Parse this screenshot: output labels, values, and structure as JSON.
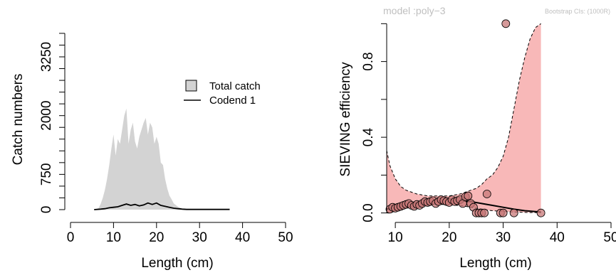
{
  "chart_data": [
    {
      "type": "area",
      "xlabel": "Length (cm)",
      "ylabel": "Catch numbers",
      "xlim": [
        0,
        50
      ],
      "ylim": [
        0,
        3900
      ],
      "xticks": [
        0,
        10,
        20,
        30,
        40,
        50
      ],
      "yticks_labeled": [
        0,
        750,
        2000,
        3250
      ],
      "yticks_minor": [
        250,
        500,
        1000,
        1250,
        1500,
        1750,
        2250,
        2500,
        2750,
        3000,
        3500,
        3750
      ],
      "legend_position": "top-right",
      "colors": {
        "total": "#d3d3d3",
        "codend": "#000000"
      },
      "series": [
        {
          "name": "Total catch",
          "style": "filled-area",
          "x": [
            5.5,
            6.5,
            7,
            7.5,
            8,
            8.5,
            9,
            9.5,
            10,
            10.5,
            11,
            11.5,
            12,
            12.5,
            13,
            13.5,
            14,
            14.5,
            15,
            15.5,
            16,
            16.5,
            17,
            17.5,
            18,
            18.5,
            19,
            19.5,
            20,
            20.5,
            21,
            21.5,
            22,
            22.5,
            23,
            23.5,
            24,
            25,
            26,
            37
          ],
          "y": [
            0,
            30,
            120,
            250,
            420,
            650,
            950,
            1300,
            1600,
            1150,
            1500,
            1400,
            1700,
            2000,
            2150,
            1400,
            1700,
            1850,
            1450,
            1300,
            1550,
            1700,
            1850,
            1950,
            1600,
            1850,
            1750,
            1400,
            1550,
            1400,
            1000,
            950,
            650,
            450,
            300,
            220,
            130,
            60,
            20,
            0
          ]
        },
        {
          "name": "Codend 1",
          "style": "line",
          "x": [
            5.5,
            7,
            8,
            9,
            10,
            11,
            12,
            13,
            14,
            15,
            16,
            17,
            18,
            19,
            20,
            21,
            22,
            23,
            24,
            25,
            26,
            27,
            30,
            34,
            37
          ],
          "y": [
            0,
            10,
            20,
            40,
            50,
            60,
            90,
            120,
            90,
            110,
            80,
            100,
            140,
            110,
            140,
            90,
            70,
            50,
            30,
            20,
            10,
            5,
            5,
            5,
            5
          ]
        }
      ]
    },
    {
      "type": "scatter",
      "title": "model :poly−3",
      "annotation": "Bootstrap CIs: (1000R)",
      "xlabel": "Length (cm)",
      "ylabel": "SIEVING efficiency",
      "xlim": [
        8.4,
        50
      ],
      "ylim": [
        -0.05,
        1.02
      ],
      "xticks": [
        10,
        20,
        30,
        40,
        50
      ],
      "yticks_labeled": [
        0.0,
        0.4,
        0.8
      ],
      "yticks_minor": [
        0.2,
        0.6,
        1.0
      ],
      "colors": {
        "band": "#f8b8b8",
        "points": "#c87878",
        "fit": "#000000"
      },
      "ci_band": {
        "x": [
          8.4,
          9,
          10,
          11,
          12,
          13,
          14,
          15,
          16,
          17,
          18,
          19,
          20,
          21,
          22,
          23,
          24,
          25,
          26,
          27,
          28,
          29,
          30,
          31,
          32,
          33,
          34,
          35,
          36,
          37
        ],
        "upper": [
          0.33,
          0.25,
          0.18,
          0.14,
          0.12,
          0.11,
          0.1,
          0.095,
          0.09,
          0.09,
          0.09,
          0.09,
          0.09,
          0.095,
          0.1,
          0.11,
          0.12,
          0.13,
          0.15,
          0.18,
          0.2,
          0.24,
          0.3,
          0.4,
          0.55,
          0.7,
          0.82,
          0.92,
          0.98,
          1.0
        ],
        "lower": [
          0.0,
          0.0,
          0.01,
          0.02,
          0.025,
          0.03,
          0.035,
          0.04,
          0.04,
          0.045,
          0.045,
          0.045,
          0.045,
          0.04,
          0.04,
          0.035,
          0.03,
          0.025,
          0.02,
          0.015,
          0.012,
          0.01,
          0.008,
          0.006,
          0.005,
          0.004,
          0.003,
          0.002,
          0.002,
          0.001
        ]
      },
      "fit": {
        "x": [
          8.4,
          10,
          12,
          14,
          16,
          18,
          20,
          22,
          24,
          26,
          28,
          30,
          32,
          34,
          37
        ],
        "y": [
          0.02,
          0.03,
          0.04,
          0.05,
          0.055,
          0.06,
          0.065,
          0.065,
          0.06,
          0.05,
          0.04,
          0.03,
          0.02,
          0.012,
          0.005
        ]
      },
      "points": {
        "x": [
          9,
          9.5,
          10,
          10.5,
          11,
          11.5,
          12,
          12.5,
          13,
          13.5,
          14,
          14.5,
          15,
          15.5,
          16,
          16.5,
          17,
          17.5,
          18,
          18.5,
          19,
          19.5,
          20,
          20.5,
          21,
          21.5,
          22,
          22.5,
          23,
          23.5,
          24,
          24.5,
          25,
          25.5,
          26,
          26.5,
          27,
          29.5,
          30,
          30.5,
          32,
          37
        ],
        "y": [
          0.02,
          0.03,
          0.025,
          0.03,
          0.035,
          0.04,
          0.045,
          0.05,
          0.04,
          0.035,
          0.045,
          0.04,
          0.05,
          0.06,
          0.055,
          0.06,
          0.065,
          0.05,
          0.06,
          0.07,
          0.065,
          0.06,
          0.055,
          0.07,
          0.06,
          0.065,
          0.07,
          0.05,
          0.085,
          0.09,
          0.05,
          0.03,
          0.0,
          0.0,
          0.0,
          0.0,
          0.1,
          0.0,
          0.0,
          1.0,
          0.0,
          0.0
        ]
      }
    }
  ]
}
